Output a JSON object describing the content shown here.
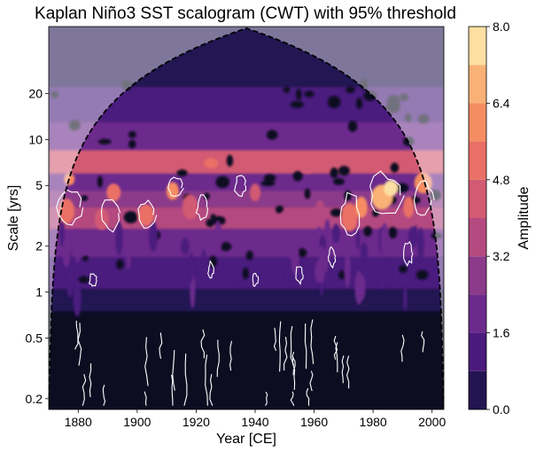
{
  "chart_data": {
    "type": "heatmap",
    "title": "Kaplan Niño3 SST scalogram (CWT) with 95% threshold",
    "xlabel": "Year [CE]",
    "ylabel": "Scale [yrs]",
    "colorbar_label": "Amplitude",
    "x_ticks": [
      "1880",
      "1900",
      "1920",
      "1940",
      "1960",
      "1980",
      "2000"
    ],
    "x_tick_values": [
      1880,
      1900,
      1920,
      1940,
      1960,
      1980,
      2000
    ],
    "y_ticks": [
      "0.2",
      "0.5",
      "1",
      "2",
      "5",
      "10",
      "20"
    ],
    "y_tick_values": [
      0.2,
      0.5,
      1,
      2,
      5,
      10,
      20
    ],
    "y_scale": "log",
    "xlim": [
      1870,
      2004
    ],
    "ylim": [
      0.17,
      55
    ],
    "colorbar_ticks": [
      "0.0",
      "1.6",
      "3.2",
      "4.8",
      "6.4",
      "8.0"
    ],
    "colorbar_tick_values": [
      0.0,
      1.6,
      3.2,
      4.8,
      6.4,
      8.0
    ],
    "colorbar_levels": [
      0.0,
      0.8,
      1.6,
      2.4,
      3.2,
      4.0,
      4.8,
      5.6,
      6.4,
      7.2,
      8.0
    ],
    "colormap": "magma",
    "colors": [
      "#0b0924",
      "#231452",
      "#4a1a7d",
      "#6c2a8c",
      "#8c3a8a",
      "#b44a80",
      "#d25a73",
      "#ea6f66",
      "#f68d62",
      "#fab176",
      "#fcdfa2"
    ],
    "cone_of_influence": "dashed black line",
    "significance_contour": "white, 95% threshold"
  }
}
